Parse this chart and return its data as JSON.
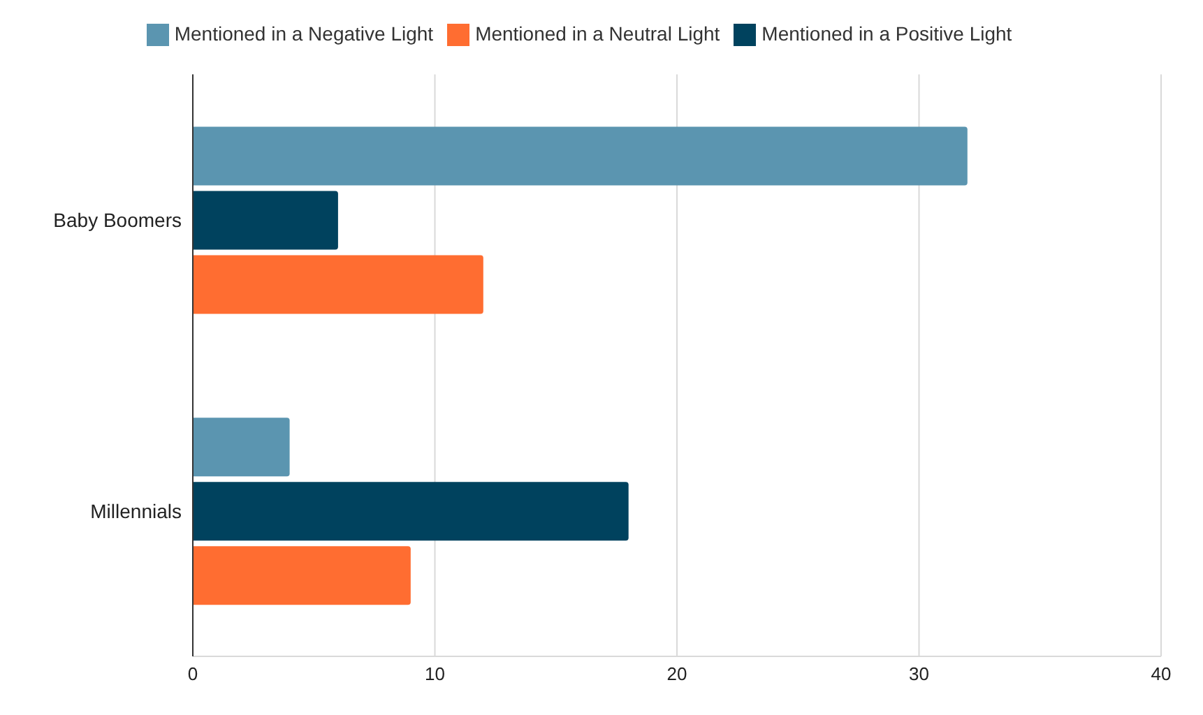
{
  "chart_data": {
    "type": "bar",
    "orientation": "horizontal",
    "categories": [
      "Baby Boomers",
      "Millennials"
    ],
    "series": [
      {
        "name": "Mentioned in a Negative Light",
        "color": "#5b95b0",
        "values": [
          32,
          4
        ]
      },
      {
        "name": "Mentioned in a Positive Light",
        "color": "#00425e",
        "values": [
          6,
          18
        ]
      },
      {
        "name": "Mentioned in a Neutral Light",
        "color": "#ff6d31",
        "values": [
          12,
          9
        ]
      }
    ],
    "xlim": [
      0,
      40
    ],
    "xticks": [
      0,
      10,
      20,
      30,
      40
    ],
    "grid": "x",
    "legend": "top"
  }
}
